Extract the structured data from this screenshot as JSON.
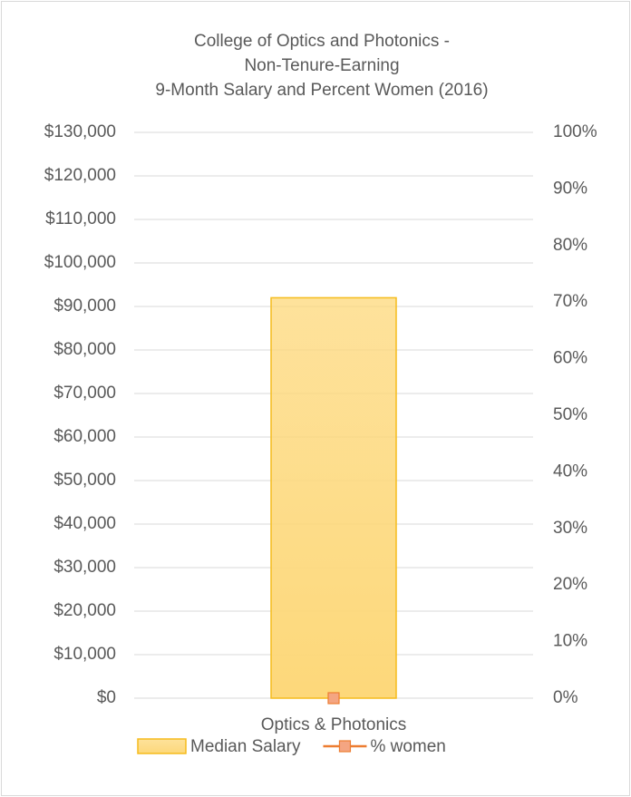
{
  "chart_data": {
    "type": "bar",
    "title": [
      "College of Optics and Photonics -",
      "Non-Tenure-Earning",
      "9-Month Salary and Percent Women (2016)"
    ],
    "categories": [
      "Optics & Photonics"
    ],
    "series": [
      {
        "name": "Median Salary",
        "type": "bar",
        "color": "#fdd87a",
        "edge": "#f5bc1c",
        "values": [
          92000
        ]
      },
      {
        "name": "% women",
        "type": "line",
        "color": "#ed7d31",
        "marker": "#f4a582",
        "axis": "y2",
        "values": [
          0
        ]
      }
    ],
    "ylim": [
      0,
      130000
    ],
    "yticks": [
      {
        "value": 0,
        "label": "$0"
      },
      {
        "value": 10000,
        "label": "$10,000"
      },
      {
        "value": 20000,
        "label": "$20,000"
      },
      {
        "value": 30000,
        "label": "$30,000"
      },
      {
        "value": 40000,
        "label": "$40,000"
      },
      {
        "value": 50000,
        "label": "$50,000"
      },
      {
        "value": 60000,
        "label": "$60,000"
      },
      {
        "value": 70000,
        "label": "$70,000"
      },
      {
        "value": 80000,
        "label": "$80,000"
      },
      {
        "value": 90000,
        "label": "$90,000"
      },
      {
        "value": 100000,
        "label": "$100,000"
      },
      {
        "value": 110000,
        "label": "$110,000"
      },
      {
        "value": 120000,
        "label": "$120,000"
      },
      {
        "value": 130000,
        "label": "$130,000"
      }
    ],
    "y2lim": [
      0,
      100
    ],
    "y2ticks": [
      {
        "value": 0,
        "label": "0%"
      },
      {
        "value": 10,
        "label": "10%"
      },
      {
        "value": 20,
        "label": "20%"
      },
      {
        "value": 30,
        "label": "30%"
      },
      {
        "value": 40,
        "label": "40%"
      },
      {
        "value": 50,
        "label": "50%"
      },
      {
        "value": 60,
        "label": "60%"
      },
      {
        "value": 70,
        "label": "70%"
      },
      {
        "value": 80,
        "label": "80%"
      },
      {
        "value": 90,
        "label": "90%"
      },
      {
        "value": 100,
        "label": "100%"
      }
    ],
    "grid": true,
    "legend": "bottom"
  }
}
